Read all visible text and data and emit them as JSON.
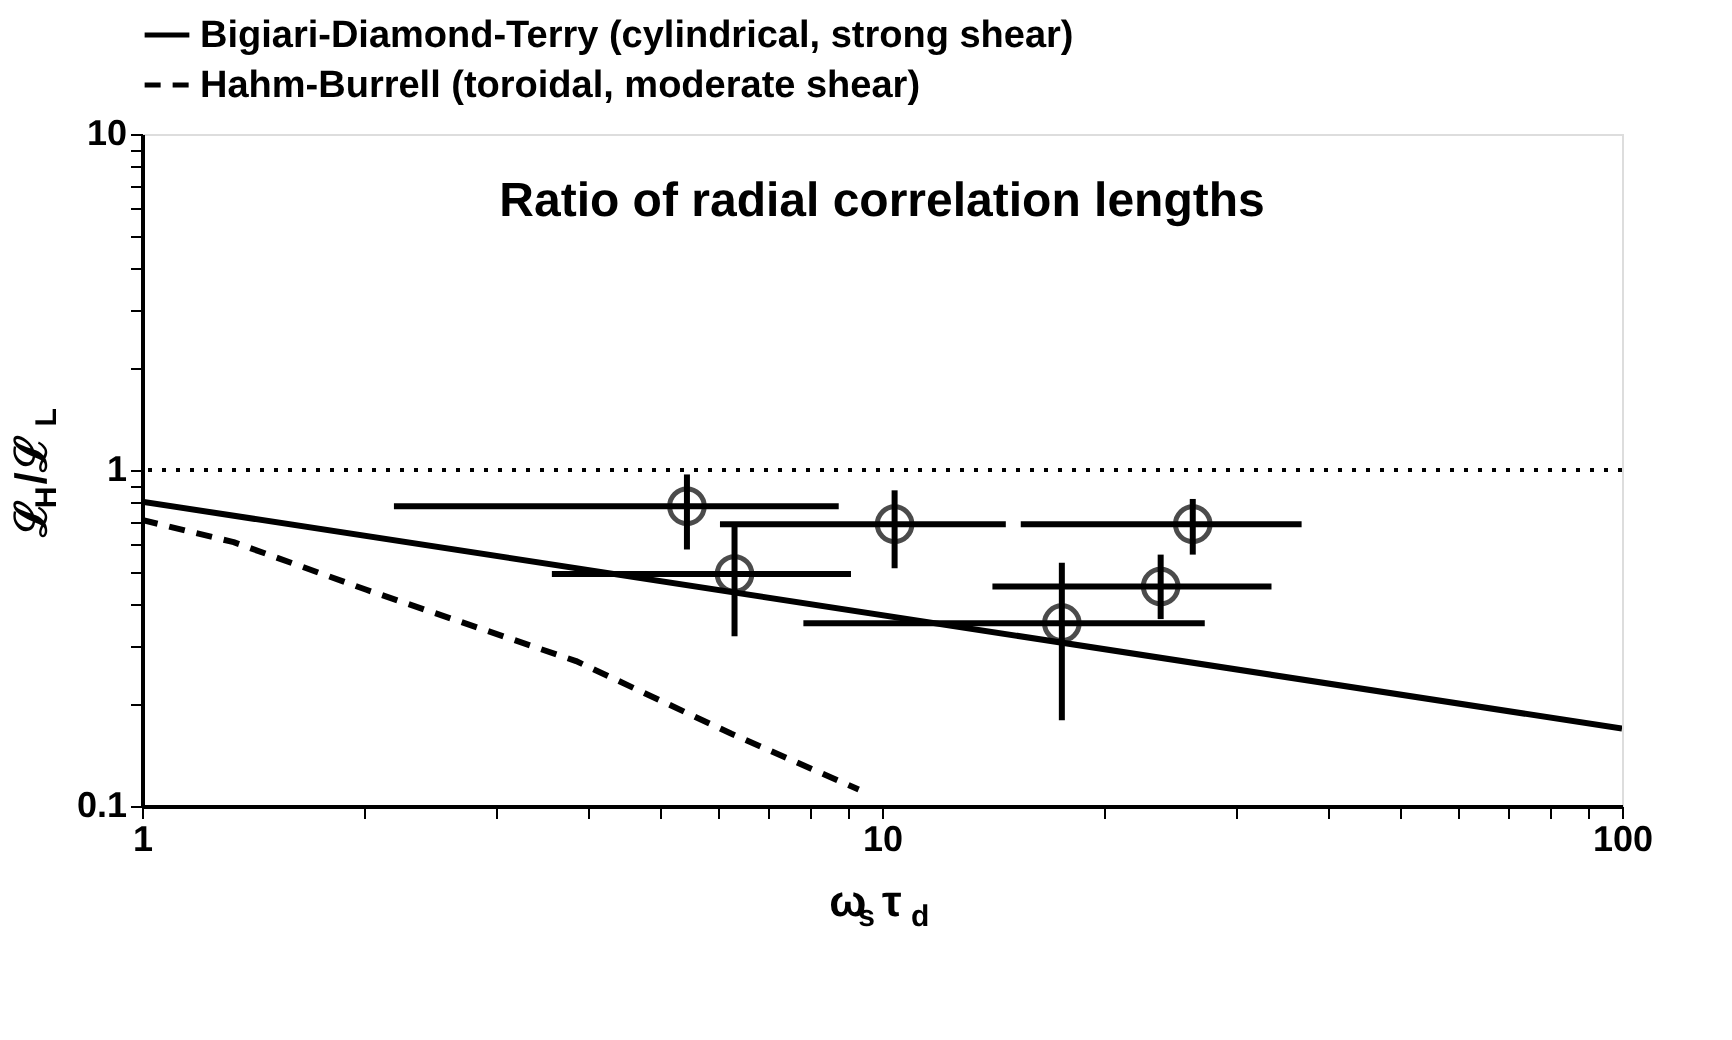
{
  "chart_data": {
    "type": "line",
    "title": "Ratio of radial correlation lengths",
    "xlabel": "ω$_{s}$τ$_{d}$",
    "ylabel": "ℒ$_{H}$/ℒ$_{L}$",
    "log": "xy",
    "grid": false,
    "legend": "top left",
    "xlim": [
      1,
      100
    ],
    "ylim": [
      0.1,
      10
    ],
    "xticks": [
      1,
      {
        "value": 2,
        "label": null
      },
      {
        "value": 3,
        "label": null
      },
      {
        "value": 4,
        "label": null
      },
      {
        "value": 5,
        "label": null
      },
      {
        "value": 6,
        "label": null
      },
      {
        "value": 7,
        "label": null
      },
      {
        "value": 8,
        "label": null
      },
      {
        "value": 9,
        "label": null
      },
      10,
      {
        "value": 20,
        "label": null
      },
      {
        "value": 30,
        "label": null
      },
      {
        "value": 40,
        "label": null
      },
      {
        "value": 50,
        "label": null
      },
      {
        "value": 60,
        "label": null
      },
      {
        "value": 70,
        "label": null
      },
      {
        "value": 80,
        "label": null
      },
      {
        "value": 90,
        "label": null
      },
      100
    ],
    "yticks": [
      0.1,
      {
        "value": 0.2,
        "label": null
      },
      {
        "value": 0.3,
        "label": null
      },
      {
        "value": 0.4,
        "label": null
      },
      {
        "value": 0.5,
        "label": null
      },
      {
        "value": 0.6,
        "label": null
      },
      {
        "value": 0.7,
        "label": null
      },
      {
        "value": 0.8,
        "label": null
      },
      {
        "value": 0.9,
        "label": null
      },
      1,
      {
        "value": 2,
        "label": null
      },
      {
        "value": 3,
        "label": null
      },
      {
        "value": 4,
        "label": null
      },
      {
        "value": 5,
        "label": null
      },
      {
        "value": 6,
        "label": null
      },
      {
        "value": 7,
        "label": null
      },
      {
        "value": 8,
        "label": null
      },
      {
        "value": 9,
        "label": null
      },
      10
    ],
    "ref_lines": [
      {
        "axis": "y",
        "value": 1,
        "color": "#000000",
        "line_style": "dotted"
      }
    ],
    "series": [
      {
        "name": "Bigiari-Diamond-Terry (cylindrical, strong shear)",
        "type": "line",
        "color": "#000000",
        "line_style": "solid",
        "x": [
          1,
          100
        ],
        "values": [
          0.805,
          0.17
        ]
      },
      {
        "name": "Hahm-Burrell (toroidal, moderate shear)",
        "type": "line",
        "color": "#000000",
        "line_style": "dashed",
        "x": [
          1,
          1.33,
          2.01,
          3.86,
          6.26,
          9.3
        ],
        "values": [
          0.71,
          0.61,
          0.44,
          0.27,
          0.164,
          0.112
        ]
      },
      {
        "type": "scatter",
        "color": "#000000",
        "marker": "circle",
        "x": [
          5.45,
          6.32,
          10.4,
          26.3,
          23.8,
          17.5
        ],
        "values": [
          0.78,
          0.49,
          0.69,
          0.69,
          0.45,
          0.35
        ],
        "errors": [
          [
            0.58,
            0.97
          ],
          [
            0.32,
            0.69
          ],
          [
            0.51,
            0.87
          ],
          [
            0.56,
            0.82
          ],
          [
            0.36,
            0.56
          ],
          [
            0.18,
            0.53
          ]
        ],
        "xerrors": [
          [
            2.19,
            8.74
          ],
          [
            3.58,
            9.08
          ],
          [
            6.04,
            14.7
          ],
          [
            15.4,
            36.9
          ],
          [
            14.1,
            33.6
          ],
          [
            7.83,
            27.3
          ]
        ]
      }
    ]
  }
}
